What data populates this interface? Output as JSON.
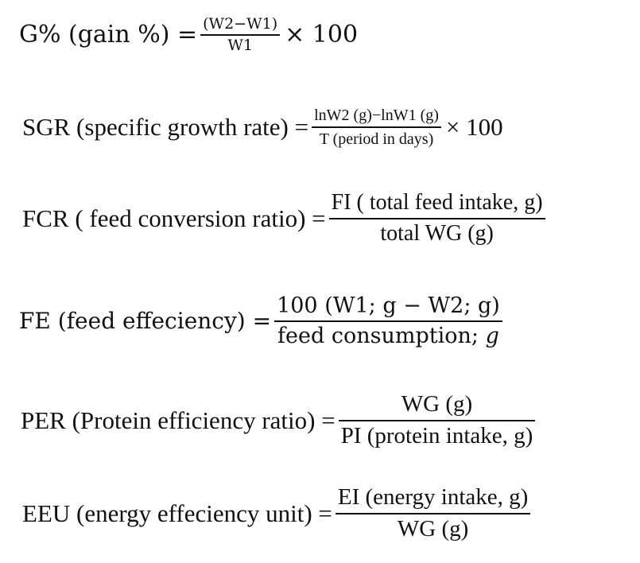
{
  "equations": [
    {
      "lhs": "G% (gain %) =",
      "numerator": "(W2−W1)",
      "denominator": "W1",
      "tail": "× 100"
    },
    {
      "lhs": "SGR (specific growth rate) =",
      "numerator": "lnW2 (g)−lnW1 (g)",
      "denominator": "T (period in days)",
      "tail": "× 100"
    },
    {
      "lhs": "FCR ( feed conversion ratio) =",
      "numerator": "FI ( total feed intake, g)",
      "denominator": "total WG (g)",
      "tail": ""
    },
    {
      "lhs": "FE (feed effeciency) =",
      "numerator": "100 (W1; g − W2; g)",
      "denominator_prefix": "feed consumption; ",
      "denominator_var": "g",
      "tail": ""
    },
    {
      "lhs": "PER (Protein efficiency ratio) =",
      "numerator": "WG (g)",
      "denominator": "PI (protein intake, g)",
      "tail": ""
    },
    {
      "lhs": "EEU (energy effeciency unit) =",
      "numerator": "EI (energy intake, g)",
      "denominator": "WG (g)",
      "tail": ""
    }
  ]
}
